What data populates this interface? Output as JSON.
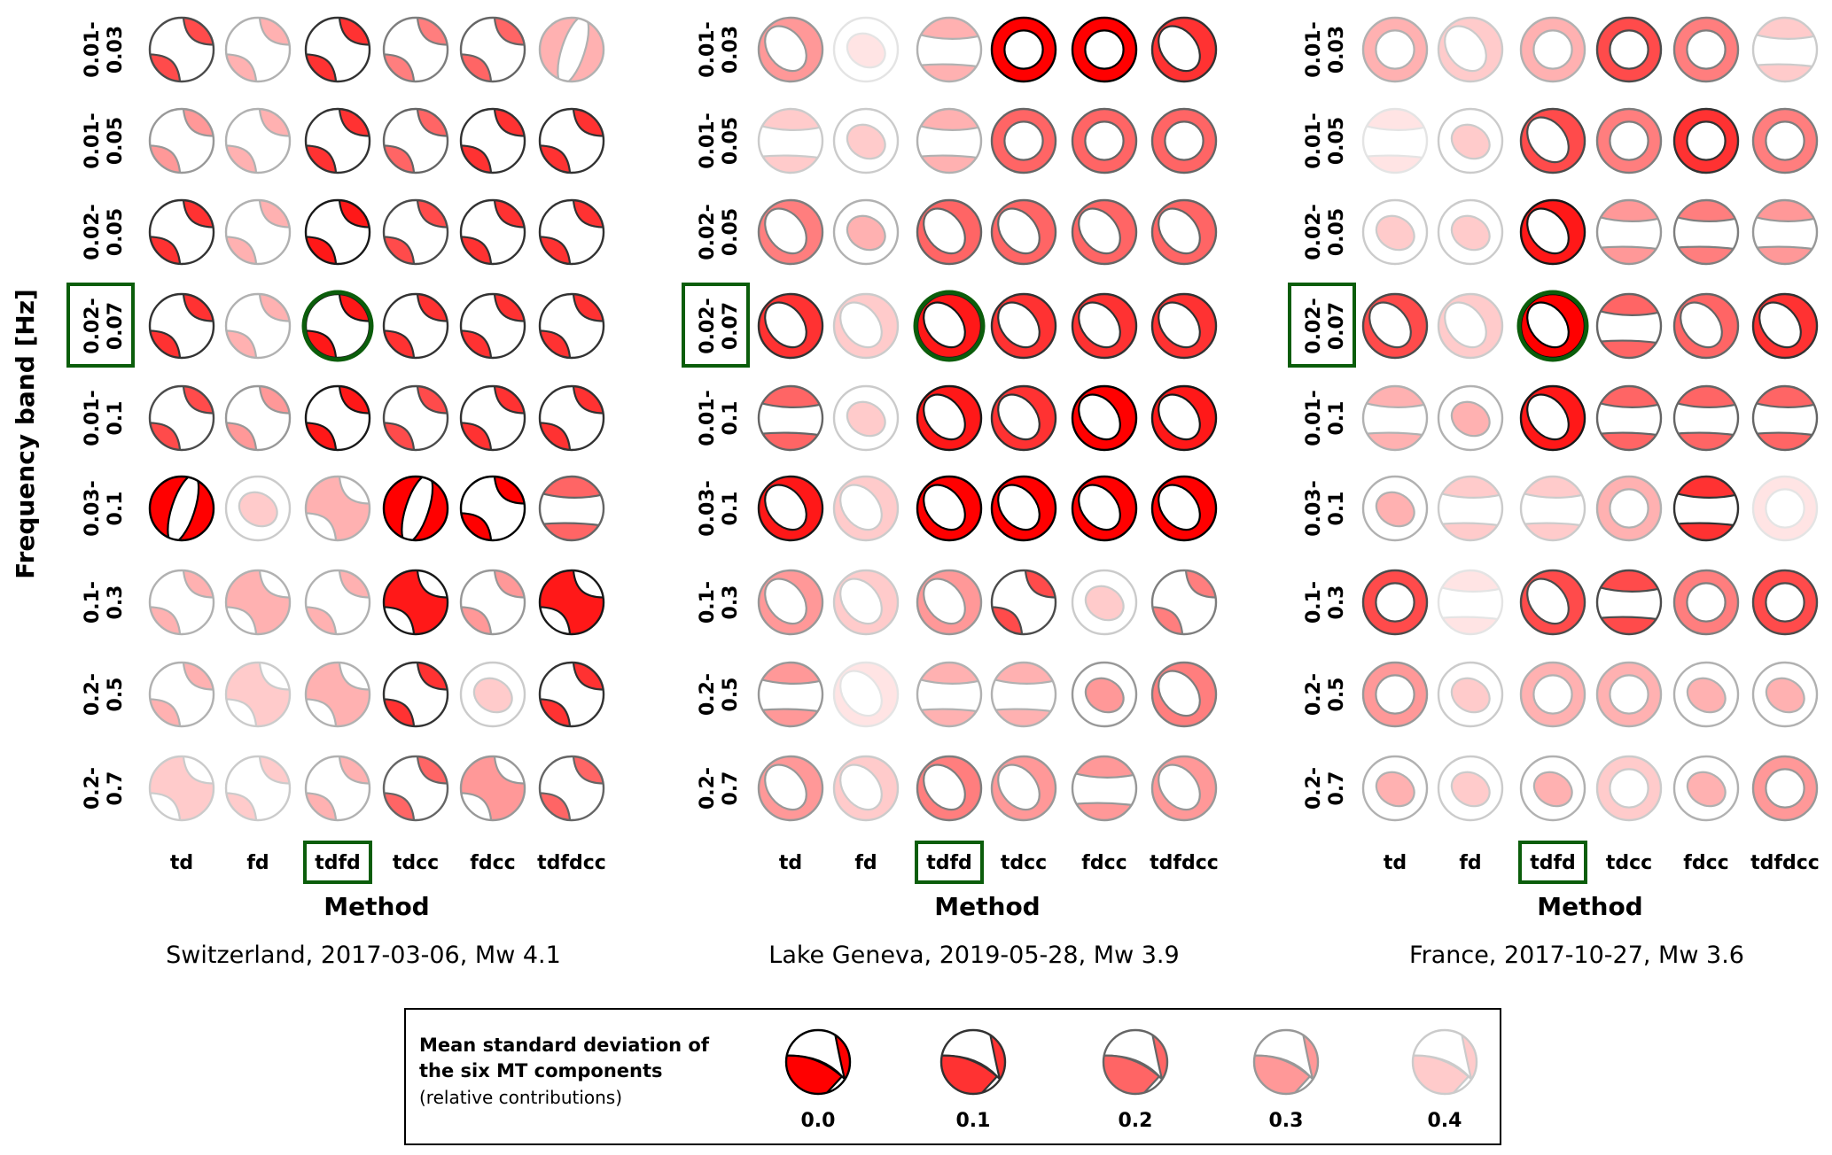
{
  "y_axis_title": "Frequency band [Hz]",
  "x_axis_title": "Method",
  "methods": [
    "td",
    "fd",
    "tdfd",
    "tdcc",
    "fdcc",
    "tdfdcc"
  ],
  "frequency_bands": [
    [
      "0.01-",
      "0.03"
    ],
    [
      "0.01-",
      "0.05"
    ],
    [
      "0.02-",
      "0.05"
    ],
    [
      "0.02-",
      "0.07"
    ],
    [
      "0.01-",
      "0.1"
    ],
    [
      "0.03-",
      "0.1"
    ],
    [
      "0.1-",
      "0.3"
    ],
    [
      "0.2-",
      "0.5"
    ],
    [
      "0.2-",
      "0.7"
    ]
  ],
  "highlight": {
    "band_index": 3,
    "method": "tdfd",
    "color": "#0b5d0b"
  },
  "colors": {
    "compressional": "#ff0000",
    "dilatational": "#ffffff",
    "outline": "#000000"
  },
  "cell_format": [
    "mean_std",
    "mechanism_shape"
  ],
  "panels": [
    {
      "title": "Switzerland, 2017-03-06, Mw 4.1",
      "cells": [
        [
          [
            0.15,
            "ss"
          ],
          [
            0.35,
            "ss"
          ],
          [
            0.1,
            "ss"
          ],
          [
            0.25,
            "ss"
          ],
          [
            0.2,
            "ss"
          ],
          [
            0.35,
            "vband"
          ]
        ],
        [
          [
            0.3,
            "ss"
          ],
          [
            0.35,
            "ss"
          ],
          [
            0.1,
            "ss"
          ],
          [
            0.2,
            "ss"
          ],
          [
            0.1,
            "ss"
          ],
          [
            0.1,
            "ss"
          ]
        ],
        [
          [
            0.1,
            "ss"
          ],
          [
            0.35,
            "ss"
          ],
          [
            0.05,
            "ss"
          ],
          [
            0.15,
            "ss"
          ],
          [
            0.1,
            "ss"
          ],
          [
            0.1,
            "ss"
          ]
        ],
        [
          [
            0.1,
            "ss"
          ],
          [
            0.35,
            "ss"
          ],
          [
            0.05,
            "ss"
          ],
          [
            0.1,
            "ss"
          ],
          [
            0.1,
            "ss"
          ],
          [
            0.1,
            "ss"
          ]
        ],
        [
          [
            0.15,
            "ss"
          ],
          [
            0.3,
            "ss"
          ],
          [
            0.05,
            "ss"
          ],
          [
            0.15,
            "ss"
          ],
          [
            0.1,
            "ss"
          ],
          [
            0.1,
            "ss"
          ]
        ],
        [
          [
            0.0,
            "vband"
          ],
          [
            0.4,
            "lens"
          ],
          [
            0.35,
            "ssx"
          ],
          [
            0.0,
            "vband"
          ],
          [
            0.0,
            "ss"
          ],
          [
            0.2,
            "band"
          ]
        ],
        [
          [
            0.35,
            "ss"
          ],
          [
            0.35,
            "ssx"
          ],
          [
            0.35,
            "ss"
          ],
          [
            0.05,
            "ssx"
          ],
          [
            0.3,
            "ss"
          ],
          [
            0.05,
            "ssx"
          ]
        ],
        [
          [
            0.35,
            "ss"
          ],
          [
            0.4,
            "ssx"
          ],
          [
            0.35,
            "ssx"
          ],
          [
            0.1,
            "ss"
          ],
          [
            0.4,
            "lens"
          ],
          [
            0.1,
            "ss"
          ]
        ],
        [
          [
            0.4,
            "ssx"
          ],
          [
            0.4,
            "ss"
          ],
          [
            0.35,
            "ss"
          ],
          [
            0.2,
            "ss"
          ],
          [
            0.3,
            "ssx"
          ],
          [
            0.2,
            "ss"
          ]
        ]
      ]
    },
    {
      "title": "Lake Geneva, 2019-05-28, Mw 3.9",
      "cells": [
        [
          [
            0.3,
            "ringoff"
          ],
          [
            0.45,
            "lens"
          ],
          [
            0.35,
            "band"
          ],
          [
            0.0,
            "ring"
          ],
          [
            0.0,
            "ring"
          ],
          [
            0.1,
            "ringoff"
          ]
        ],
        [
          [
            0.4,
            "band"
          ],
          [
            0.4,
            "lens"
          ],
          [
            0.35,
            "band"
          ],
          [
            0.2,
            "ring"
          ],
          [
            0.2,
            "ring"
          ],
          [
            0.2,
            "ring"
          ]
        ],
        [
          [
            0.25,
            "ringoff"
          ],
          [
            0.35,
            "lens"
          ],
          [
            0.2,
            "ringoff"
          ],
          [
            0.2,
            "ringoff"
          ],
          [
            0.2,
            "ringoff"
          ],
          [
            0.2,
            "ringoff"
          ]
        ],
        [
          [
            0.1,
            "ringoff"
          ],
          [
            0.4,
            "ringoff"
          ],
          [
            0.05,
            "ringoff"
          ],
          [
            0.1,
            "ringoff"
          ],
          [
            0.1,
            "ringoff"
          ],
          [
            0.1,
            "ringoff"
          ]
        ],
        [
          [
            0.2,
            "band"
          ],
          [
            0.4,
            "lens"
          ],
          [
            0.05,
            "ringoff"
          ],
          [
            0.1,
            "ringoff"
          ],
          [
            0.0,
            "ringoff"
          ],
          [
            0.05,
            "ringoff"
          ]
        ],
        [
          [
            0.05,
            "ringoff"
          ],
          [
            0.4,
            "ringoff"
          ],
          [
            0.0,
            "ringoff"
          ],
          [
            0.0,
            "ringoff"
          ],
          [
            0.0,
            "ringoff"
          ],
          [
            0.0,
            "ringoff"
          ]
        ],
        [
          [
            0.3,
            "ringoff"
          ],
          [
            0.4,
            "ringoff"
          ],
          [
            0.3,
            "ringoff"
          ],
          [
            0.15,
            "ss"
          ],
          [
            0.4,
            "lens"
          ],
          [
            0.25,
            "ss"
          ]
        ],
        [
          [
            0.3,
            "band"
          ],
          [
            0.45,
            "ringoff"
          ],
          [
            0.35,
            "band"
          ],
          [
            0.35,
            "band"
          ],
          [
            0.3,
            "lens"
          ],
          [
            0.25,
            "ringoff"
          ]
        ],
        [
          [
            0.3,
            "ringoff"
          ],
          [
            0.4,
            "ringoff"
          ],
          [
            0.25,
            "ringoff"
          ],
          [
            0.3,
            "ringoff"
          ],
          [
            0.3,
            "band"
          ],
          [
            0.3,
            "ringoff"
          ]
        ]
      ]
    },
    {
      "title": "France, 2017-10-27, Mw 3.6",
      "cells": [
        [
          [
            0.35,
            "ring"
          ],
          [
            0.4,
            "ringoff"
          ],
          [
            0.35,
            "ring"
          ],
          [
            0.15,
            "ring"
          ],
          [
            0.25,
            "ring"
          ],
          [
            0.4,
            "band"
          ]
        ],
        [
          [
            0.45,
            "band"
          ],
          [
            0.4,
            "lens"
          ],
          [
            0.15,
            "ringoff"
          ],
          [
            0.25,
            "ring"
          ],
          [
            0.1,
            "ring"
          ],
          [
            0.25,
            "ring"
          ]
        ],
        [
          [
            0.4,
            "lens"
          ],
          [
            0.4,
            "lens"
          ],
          [
            0.05,
            "ringoff"
          ],
          [
            0.3,
            "band"
          ],
          [
            0.25,
            "band"
          ],
          [
            0.3,
            "band"
          ]
        ],
        [
          [
            0.15,
            "ringoff"
          ],
          [
            0.4,
            "ringoff"
          ],
          [
            0.0,
            "ringoff"
          ],
          [
            0.2,
            "band"
          ],
          [
            0.2,
            "ringoff"
          ],
          [
            0.1,
            "ringoff"
          ]
        ],
        [
          [
            0.35,
            "band"
          ],
          [
            0.35,
            "lens"
          ],
          [
            0.05,
            "ringoff"
          ],
          [
            0.2,
            "band"
          ],
          [
            0.2,
            "band"
          ],
          [
            0.2,
            "band"
          ]
        ],
        [
          [
            0.35,
            "lens"
          ],
          [
            0.4,
            "band"
          ],
          [
            0.4,
            "band"
          ],
          [
            0.35,
            "ring"
          ],
          [
            0.1,
            "band"
          ],
          [
            0.45,
            "ring"
          ]
        ],
        [
          [
            0.15,
            "ring"
          ],
          [
            0.45,
            "band"
          ],
          [
            0.15,
            "ringoff"
          ],
          [
            0.15,
            "band"
          ],
          [
            0.25,
            "ring"
          ],
          [
            0.15,
            "ring"
          ]
        ],
        [
          [
            0.3,
            "ring"
          ],
          [
            0.4,
            "lens"
          ],
          [
            0.35,
            "ring"
          ],
          [
            0.35,
            "ring"
          ],
          [
            0.35,
            "lens"
          ],
          [
            0.35,
            "lens"
          ]
        ],
        [
          [
            0.35,
            "lens"
          ],
          [
            0.4,
            "lens"
          ],
          [
            0.35,
            "lens"
          ],
          [
            0.4,
            "ring"
          ],
          [
            0.35,
            "lens"
          ],
          [
            0.3,
            "ring"
          ]
        ]
      ]
    }
  ],
  "legend": {
    "title_line1": "Mean standard deviation of",
    "title_line2": "the six MT components",
    "subtitle": "(relative contributions)",
    "values": [
      "0.0",
      "0.1",
      "0.2",
      "0.3",
      "0.4"
    ],
    "levels": [
      0.0,
      0.1,
      0.2,
      0.3,
      0.4
    ]
  }
}
